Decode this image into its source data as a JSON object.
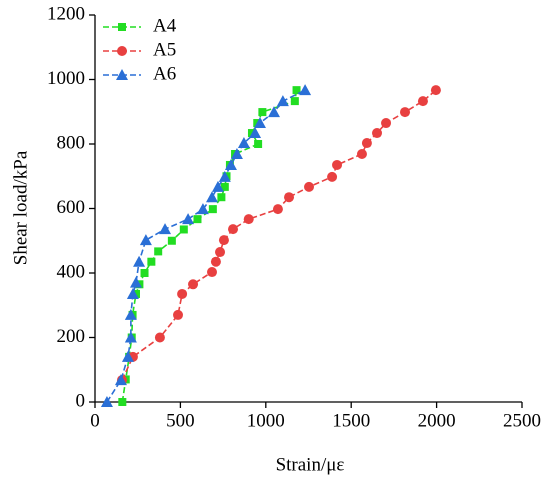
{
  "chart_data": {
    "type": "line",
    "xlabel": "Strain/με",
    "ylabel": "Shear load/kPa",
    "xlim": [
      0,
      2500
    ],
    "xticks": [
      0,
      500,
      1000,
      1500,
      2000,
      2500
    ],
    "ylim": [
      0,
      1200
    ],
    "yticks": [
      0,
      200,
      400,
      600,
      800,
      1000,
      1200
    ],
    "grid": false,
    "legend": "upper left",
    "series": [
      {
        "name": "A4",
        "color": "#22dd22",
        "marker": "square",
        "x": [
          160,
          180,
          200,
          215,
          220,
          240,
          260,
          290,
          330,
          370,
          450,
          520,
          600,
          690,
          740,
          760,
          770,
          790,
          820,
          955,
          919,
          950,
          980,
          1170,
          1180
        ],
        "values": [
          0,
          70,
          140,
          200,
          270,
          335,
          365,
          400,
          435,
          467,
          500,
          535,
          567,
          598,
          635,
          667,
          700,
          735,
          769,
          800,
          834,
          865,
          899,
          933,
          967
        ]
      },
      {
        "name": "A5",
        "color": "#e84040",
        "marker": "circle",
        "x": [
          158,
          222,
          380,
          486,
          510,
          574,
          685,
          708,
          732,
          755,
          808,
          900,
          1071,
          1136,
          1253,
          1388,
          1417,
          1563,
          1592,
          1651,
          1704,
          1815,
          1920,
          1996
        ],
        "values": [
          68,
          140,
          200,
          270,
          335,
          365,
          403,
          435,
          465,
          502,
          536,
          567,
          598,
          635,
          667,
          698,
          735,
          769,
          803,
          834,
          865,
          899,
          933,
          967
        ]
      },
      {
        "name": "A6",
        "color": "#2a6fd6",
        "marker": "triangle",
        "x": [
          70,
          152,
          193,
          210,
          210,
          222,
          240,
          258,
          298,
          410,
          545,
          632,
          685,
          720,
          760,
          796,
          831,
          872,
          937,
          966,
          1048,
          1100,
          1230
        ],
        "values": [
          0,
          68,
          140,
          200,
          270,
          335,
          370,
          435,
          502,
          536,
          567,
          598,
          635,
          667,
          698,
          735,
          769,
          803,
          834,
          865,
          899,
          933,
          967
        ]
      }
    ]
  }
}
